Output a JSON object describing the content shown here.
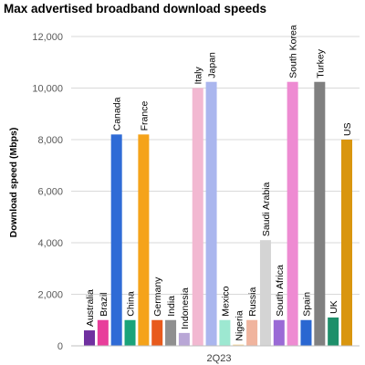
{
  "chart_data": {
    "type": "bar",
    "title": "Max advertised broadband download speeds",
    "xlabel": "2Q23",
    "ylabel": "Download speed (Mbps)",
    "ylim": [
      0,
      12000
    ],
    "yticks": [
      "0",
      "2,000",
      "4,000",
      "6,000",
      "8,000",
      "10,000",
      "12,000"
    ],
    "ytick_values": [
      0,
      2000,
      4000,
      6000,
      8000,
      10000,
      12000
    ],
    "grid": true,
    "series": [
      {
        "name": "Australia",
        "value": 600,
        "color": "#7030a0"
      },
      {
        "name": "Brazil",
        "value": 1000,
        "color": "#e83e9b"
      },
      {
        "name": "Canada",
        "value": 8200,
        "color": "#2f6bd6"
      },
      {
        "name": "China",
        "value": 1000,
        "color": "#1aa37a"
      },
      {
        "name": "France",
        "value": 8200,
        "color": "#f5a31a"
      },
      {
        "name": "Germany",
        "value": 1000,
        "color": "#e85a1c"
      },
      {
        "name": "India",
        "value": 1000,
        "color": "#8f8f8f"
      },
      {
        "name": "Indonesia",
        "value": 500,
        "color": "#b9a7d6"
      },
      {
        "name": "Italy",
        "value": 10000,
        "color": "#f2b8d1"
      },
      {
        "name": "Japan",
        "value": 10240,
        "color": "#aab6ee"
      },
      {
        "name": "Mexico",
        "value": 1000,
        "color": "#9de8d1"
      },
      {
        "name": "Nigeria",
        "value": 50,
        "color": "#f7d79a"
      },
      {
        "name": "Russia",
        "value": 1000,
        "color": "#f0b49e"
      },
      {
        "name": "Saudi Arabia",
        "value": 4100,
        "color": "#d4d4d4"
      },
      {
        "name": "South Africa",
        "value": 1000,
        "color": "#9a6ad6"
      },
      {
        "name": "South Korea",
        "value": 10240,
        "color": "#ee8bd2"
      },
      {
        "name": "Spain",
        "value": 1000,
        "color": "#2a67d1"
      },
      {
        "name": "Turkey",
        "value": 10240,
        "color": "#808080"
      },
      {
        "name": "UK",
        "value": 1100,
        "color": "#1e8f6a"
      },
      {
        "name": "US",
        "value": 8000,
        "color": "#d9960f"
      }
    ]
  }
}
